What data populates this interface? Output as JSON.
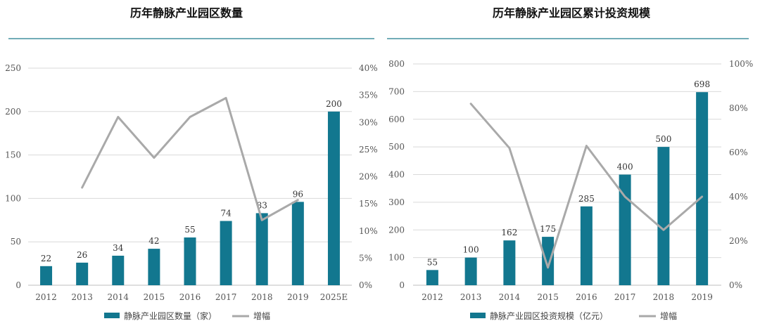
{
  "colors": {
    "bar": "#12778f",
    "line": "#a9a9a9",
    "grid": "#d9d9d9",
    "rule": "#1f7a8c",
    "axis": "#bfbfbf"
  },
  "chart_data": [
    {
      "type": "bar+line",
      "title": "历年静脉产业园区数量",
      "categories": [
        "2012",
        "2013",
        "2014",
        "2015",
        "2016",
        "2017",
        "2018",
        "2019",
        "2025E"
      ],
      "bar_series": {
        "name": "静脉产业园区数量（家）",
        "values": [
          22,
          26,
          34,
          42,
          55,
          74,
          83,
          96,
          200
        ]
      },
      "line_series": {
        "name": "增幅",
        "values": [
          null,
          0.18,
          0.31,
          0.235,
          0.31,
          0.345,
          0.12,
          0.157,
          null
        ]
      },
      "y_left": {
        "min": 0,
        "max": 250,
        "ticks": [
          "0",
          "50",
          "100",
          "150",
          "200",
          "250"
        ]
      },
      "y_right": {
        "min": 0,
        "max": 0.4,
        "ticks": [
          "0%",
          "5%",
          "10%",
          "15%",
          "20%",
          "25%",
          "30%",
          "35%",
          "40%"
        ]
      },
      "grid": true,
      "legend": "bottom"
    },
    {
      "type": "bar+line",
      "title": "历年静脉产业园区累计投资规模",
      "categories": [
        "2012",
        "2013",
        "2014",
        "2015",
        "2016",
        "2017",
        "2018",
        "2019"
      ],
      "bar_series": {
        "name": "静脉产业园区投资规模（亿元）",
        "values": [
          55,
          100,
          162,
          175,
          285,
          400,
          500,
          698
        ]
      },
      "line_series": {
        "name": "增幅",
        "values": [
          null,
          0.82,
          0.62,
          0.08,
          0.63,
          0.4,
          0.25,
          0.4
        ]
      },
      "y_left": {
        "min": 0,
        "max": 800,
        "ticks": [
          "0",
          "100",
          "200",
          "300",
          "400",
          "500",
          "600",
          "700",
          "800"
        ]
      },
      "y_right": {
        "min": 0,
        "max": 1.0,
        "ticks": [
          "0%",
          "20%",
          "40%",
          "60%",
          "80%",
          "100%"
        ]
      },
      "grid": true,
      "legend": "bottom"
    }
  ]
}
